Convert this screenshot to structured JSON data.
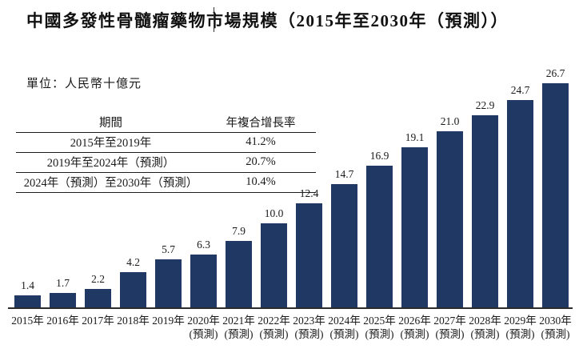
{
  "page": {
    "title": "中國多發性骨髓瘤藥物市場規模（2015年至2030年（預測））",
    "unit_label": "單位：人民幣十億元"
  },
  "cagr_table": {
    "col_headers": [
      "期間",
      "年複合增長率"
    ],
    "rows": [
      {
        "period": "2015年至2019年",
        "cagr": "41.2%"
      },
      {
        "period": "2019年至2024年（預測）",
        "cagr": "20.7%"
      },
      {
        "period": "2024年（預測）至2030年（預測）",
        "cagr": "10.4%"
      }
    ]
  },
  "chart_data": {
    "type": "bar",
    "title": "中國多發性骨髓瘤藥物市場規模（2015年至2030年（預測））",
    "ylabel": "人民幣十億元",
    "xlabel": "",
    "categories": [
      "2015年",
      "2016年",
      "2017年",
      "2018年",
      "2019年",
      "2020年",
      "2021年",
      "2022年",
      "2023年",
      "2024年",
      "2025年",
      "2026年",
      "2027年",
      "2028年",
      "2029年",
      "2030年"
    ],
    "forecast_suffix": "(預測)",
    "forecast_from_index": 5,
    "values": [
      1.4,
      1.7,
      2.2,
      4.2,
      5.7,
      6.3,
      7.9,
      10.0,
      12.4,
      14.7,
      16.9,
      19.1,
      21.0,
      22.9,
      24.7,
      26.7
    ],
    "value_labels": [
      "1.4",
      "1.7",
      "2.2",
      "4.2",
      "5.7",
      "6.3",
      "7.9",
      "10.0",
      "12.4",
      "14.7",
      "16.9",
      "19.1",
      "21.0",
      "22.9",
      "24.7",
      "26.7"
    ],
    "ylim": [
      0,
      28
    ],
    "grid": false,
    "legend": false,
    "bar_color": "#1f3864",
    "axis_color": "#2b2b2b"
  }
}
